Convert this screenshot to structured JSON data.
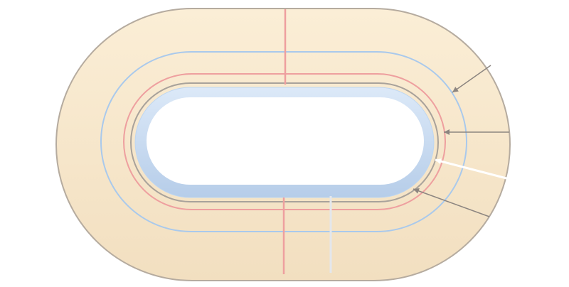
{
  "diagram": {
    "subject": "velodrome-track",
    "colors": {
      "background": "#ffffff",
      "track_surface": "#f7e6c9",
      "track_outline": "#b5ab9f",
      "blue_line": "#a9c9ec",
      "red_line": "#ee9f9f",
      "grey_line": "#a8a29b",
      "infield_fill": "#ffffff",
      "infield_border": "#bdd6f1",
      "pointer_line": "#8c8580",
      "white_pointer": "#ffffff"
    },
    "pointers": [
      {
        "target": "blue-line"
      },
      {
        "target": "red-line"
      },
      {
        "target": "grey-line"
      },
      {
        "target": "white-line"
      }
    ]
  }
}
